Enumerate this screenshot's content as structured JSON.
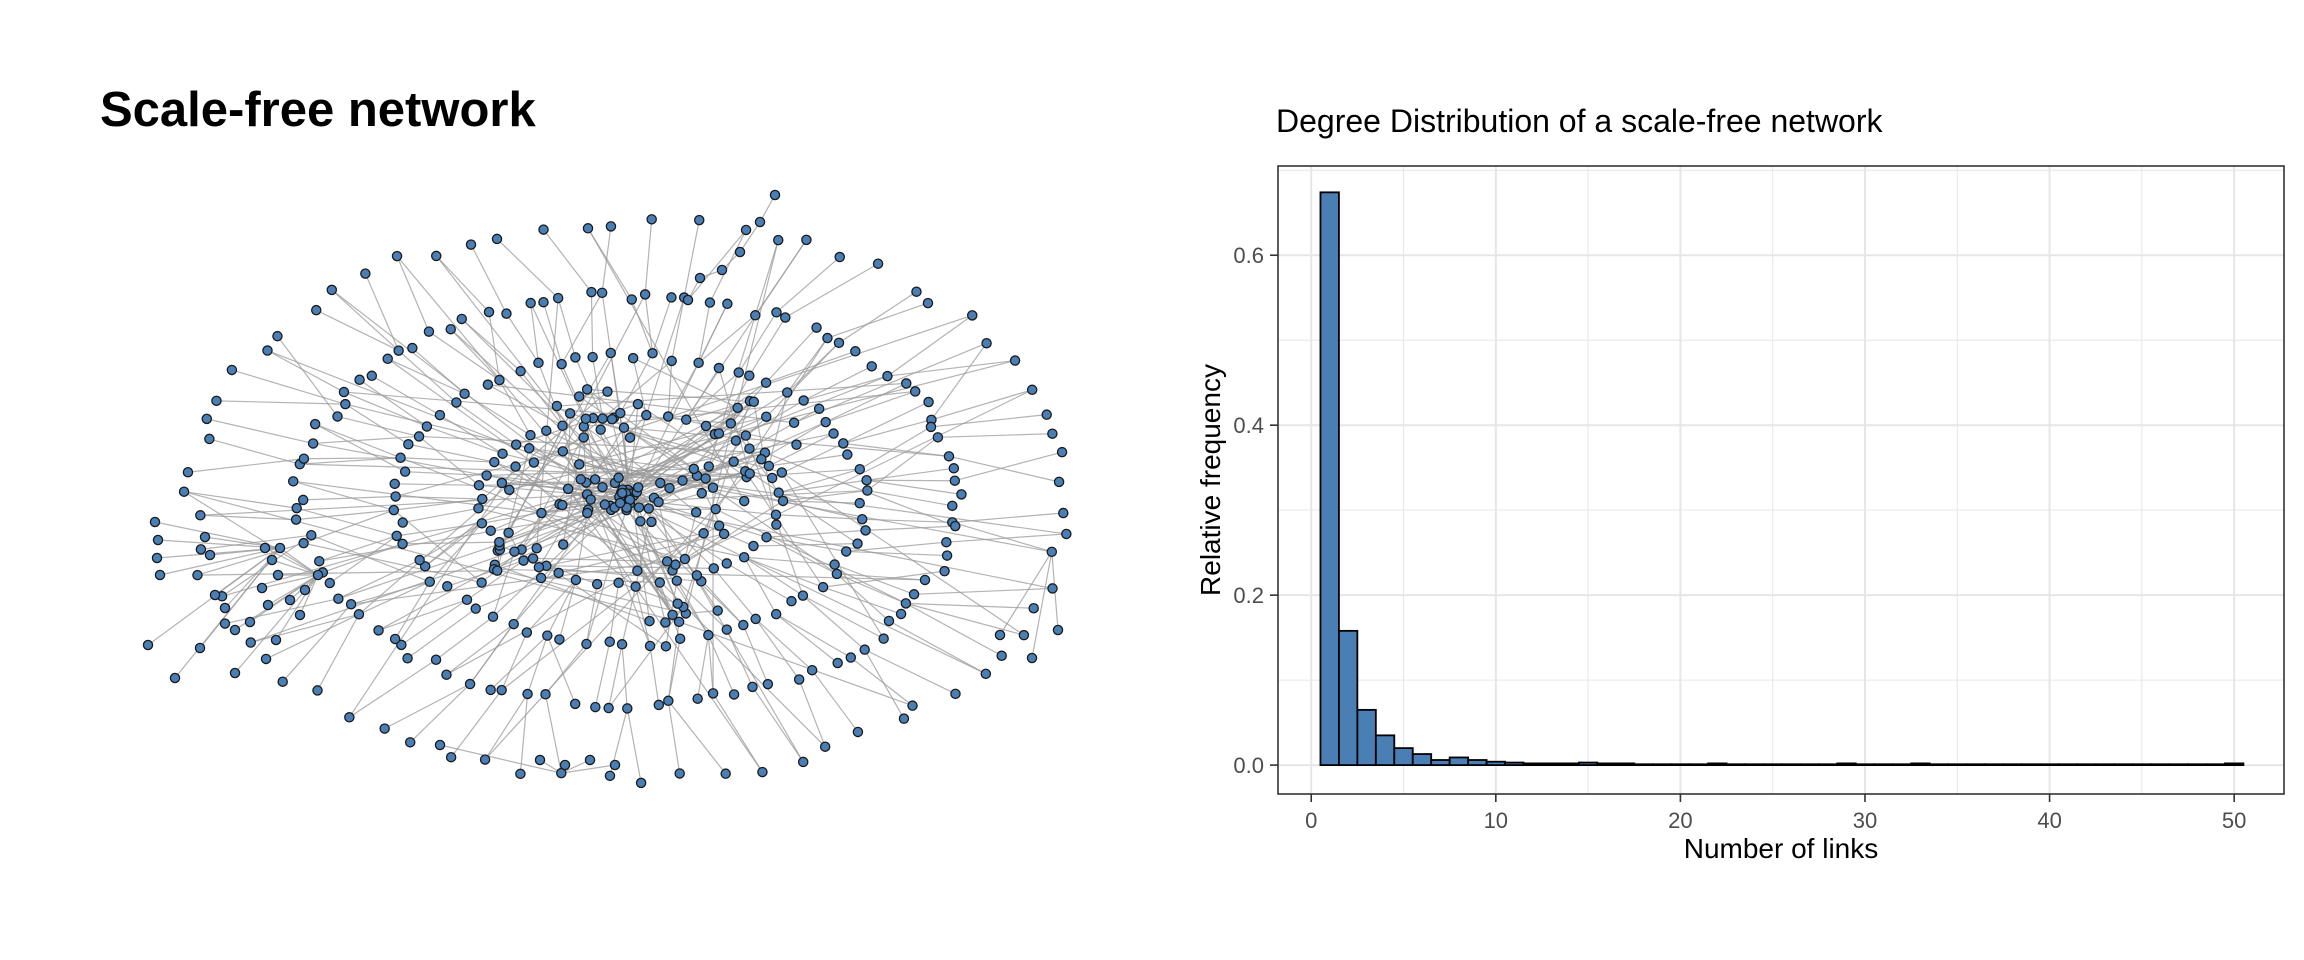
{
  "left_panel": {
    "title": "Scale-free network"
  },
  "colors": {
    "node_fill": "#4a7fb5",
    "node_stroke": "#1a1a1a",
    "edge": "#9a9a9a",
    "bar_fill": "#4a7fb5",
    "bar_stroke": "#000000",
    "grid": "#e6e6e6"
  },
  "chart_data": {
    "type": "bar",
    "title": "Degree Distribution of a scale-free network",
    "xlabel": "Number of links",
    "ylabel": "Relative frequency",
    "xlim": [
      -1.8,
      52.7
    ],
    "ylim": [
      -0.034,
      0.705
    ],
    "x_ticks": [
      0,
      10,
      20,
      30,
      40,
      50
    ],
    "y_ticks": [
      0.0,
      0.2,
      0.4,
      0.6
    ],
    "y_tick_labels": [
      "0.0",
      "0.2",
      "0.4",
      "0.6"
    ],
    "grid": true,
    "legend": "none",
    "x": [
      1,
      2,
      3,
      4,
      5,
      6,
      7,
      8,
      9,
      10,
      11,
      12,
      13,
      14,
      15,
      16,
      17,
      18,
      19,
      20,
      21,
      22,
      23,
      24,
      25,
      26,
      27,
      28,
      29,
      30,
      31,
      32,
      33,
      34,
      35,
      36,
      37,
      38,
      39,
      40,
      41,
      42,
      43,
      44,
      45,
      46,
      47,
      48,
      49,
      50
    ],
    "values": [
      0.674,
      0.158,
      0.065,
      0.035,
      0.02,
      0.013,
      0.006,
      0.009,
      0.006,
      0.004,
      0.003,
      0.002,
      0.002,
      0.002,
      0.003,
      0.002,
      0.002,
      0.001,
      0.001,
      0.001,
      0.001,
      0.002,
      0.001,
      0.001,
      0.001,
      0.001,
      0.001,
      0.001,
      0.002,
      0.001,
      0.001,
      0.001,
      0.002,
      0.001,
      0.001,
      0.001,
      0.001,
      0.001,
      0.001,
      0.001,
      0.001,
      0.001,
      0.001,
      0.001,
      0.001,
      0.001,
      0.001,
      0.001,
      0.001,
      0.002
    ]
  }
}
